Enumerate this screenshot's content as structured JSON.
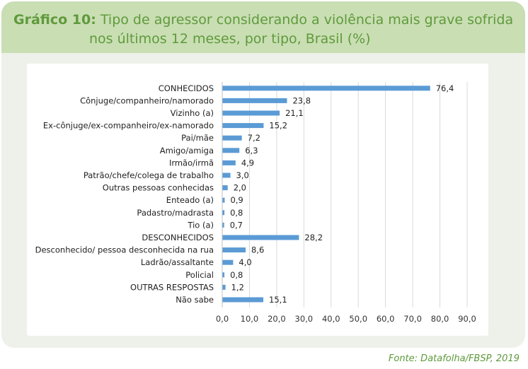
{
  "header": {
    "prefix": "Gráfico 10:",
    "title_line1": "Tipo de agressor considerando a violência mais grave sofrida",
    "title_line2": "nos últimos 12 meses, por tipo, Brasil (%)"
  },
  "source": "Fonte: Datafolha/FBSP, 2019",
  "colors": {
    "bar": "#5b9bd5",
    "accent": "#5f9a3c",
    "header_bg": "#c9deb3",
    "card_bg": "#eef1ea"
  },
  "chart_data": {
    "type": "bar",
    "orientation": "horizontal",
    "title": "Tipo de agressor considerando a violência mais grave sofrida nos últimos 12 meses, por tipo, Brasil (%)",
    "categories": [
      "CONHECIDOS",
      "Cônjuge/companheiro/namorado",
      "Vizinho (a)",
      "Ex-cônjuge/ex-companheiro/ex-namorado",
      "Pai/mãe",
      "Amigo/amiga",
      "Irmão/irmã",
      "Patrão/chefe/colega de trabalho",
      "Outras pessoas conhecidas",
      "Enteado (a)",
      "Padastro/madrasta",
      "Tio (a)",
      "DESCONHECIDOS",
      "Desconhecido/ pessoa desconhecida na rua",
      "Ladrão/assaltante",
      "Policial",
      "OUTRAS RESPOSTAS",
      "Não sabe"
    ],
    "values": [
      76.4,
      23.8,
      21.1,
      15.2,
      7.2,
      6.3,
      4.9,
      3.0,
      2.0,
      0.9,
      0.8,
      0.7,
      28.2,
      8.6,
      4.0,
      0.8,
      1.2,
      15.1
    ],
    "value_labels": [
      "76,4",
      "23,8",
      "21,1",
      "15,2",
      "7,2",
      "6,3",
      "4,9",
      "3,0",
      "2,0",
      "0,9",
      "0,8",
      "0,7",
      "28,2",
      "8,6",
      "4,0",
      "0,8",
      "1,2",
      "15,1"
    ],
    "xlim": [
      0,
      90
    ],
    "ticks": [
      0,
      10,
      20,
      30,
      40,
      50,
      60,
      70,
      80,
      90
    ],
    "tick_labels": [
      "0,0",
      "10,0",
      "20,0",
      "30,0",
      "40,0",
      "50,0",
      "60,0",
      "70,0",
      "80,0",
      "90,0"
    ],
    "grid": true,
    "xlabel": "",
    "ylabel": ""
  }
}
